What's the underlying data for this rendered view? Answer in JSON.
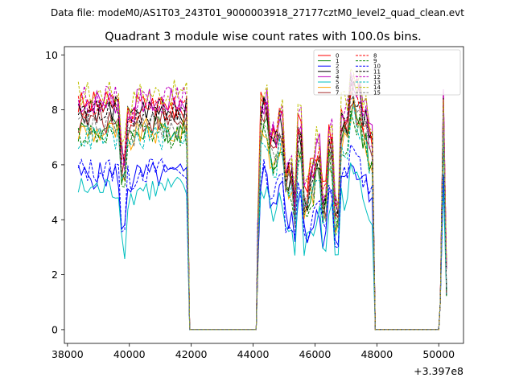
{
  "chart_data": {
    "type": "line",
    "suptitle": "Data file: modeM0/AS1T03_243T01_9000003918_27177cztM0_level2_quad_clean.evt",
    "title": "Quadrant 3 module wise count rates with 100.0s bins.",
    "xlabel": "",
    "ylabel": "",
    "x_offset_label": "+3.397e8",
    "xlim": [
      37900,
      50800
    ],
    "ylim": [
      -0.5,
      10.3
    ],
    "xticks": [
      38000,
      40000,
      42000,
      44000,
      46000,
      48000,
      50000
    ],
    "yticks": [
      0,
      2,
      4,
      6,
      8,
      10
    ],
    "legend_position": "top-right",
    "segments": [
      {
        "x_start": 38350,
        "x_end": 41850,
        "x_edge_low": 41950,
        "gap_end": 44100
      },
      {
        "x_start": 44150,
        "x_end": 47850,
        "x_edge_low": 47950,
        "gap_end": 50000
      },
      {
        "x_start": 50050,
        "x_end": 50250
      }
    ],
    "series": [
      {
        "name": "0",
        "color": "#ff0000",
        "dash": "solid",
        "level": 8.2
      },
      {
        "name": "1",
        "color": "#008000",
        "dash": "solid",
        "level": 7.3
      },
      {
        "name": "2",
        "color": "#0000ff",
        "dash": "solid",
        "level": 5.6
      },
      {
        "name": "3",
        "color": "#000000",
        "dash": "solid",
        "level": 8.0
      },
      {
        "name": "4",
        "color": "#bf00bf",
        "dash": "solid",
        "level": 8.3
      },
      {
        "name": "5",
        "color": "#00bfbf",
        "dash": "solid",
        "level": 5.1
      },
      {
        "name": "6",
        "color": "#ffa500",
        "dash": "solid",
        "level": 7.2
      },
      {
        "name": "7",
        "color": "#a52a2a",
        "dash": "solid",
        "level": 7.6
      },
      {
        "name": "8",
        "color": "#ff0000",
        "dash": "dashed",
        "level": 8.1
      },
      {
        "name": "9",
        "color": "#008000",
        "dash": "dashed",
        "level": 7.1
      },
      {
        "name": "10",
        "color": "#0000ff",
        "dash": "dashed",
        "level": 5.8
      },
      {
        "name": "11",
        "color": "#000000",
        "dash": "dashed",
        "level": 7.9
      },
      {
        "name": "12",
        "color": "#bf00bf",
        "dash": "dashed",
        "level": 8.4
      },
      {
        "name": "13",
        "color": "#00bfbf",
        "dash": "dashed",
        "level": 7.0
      },
      {
        "name": "14",
        "color": "#bfbf00",
        "dash": "dashed",
        "level": 8.6
      },
      {
        "name": "15",
        "color": "#808080",
        "dash": "dashed",
        "level": 7.4
      }
    ]
  }
}
